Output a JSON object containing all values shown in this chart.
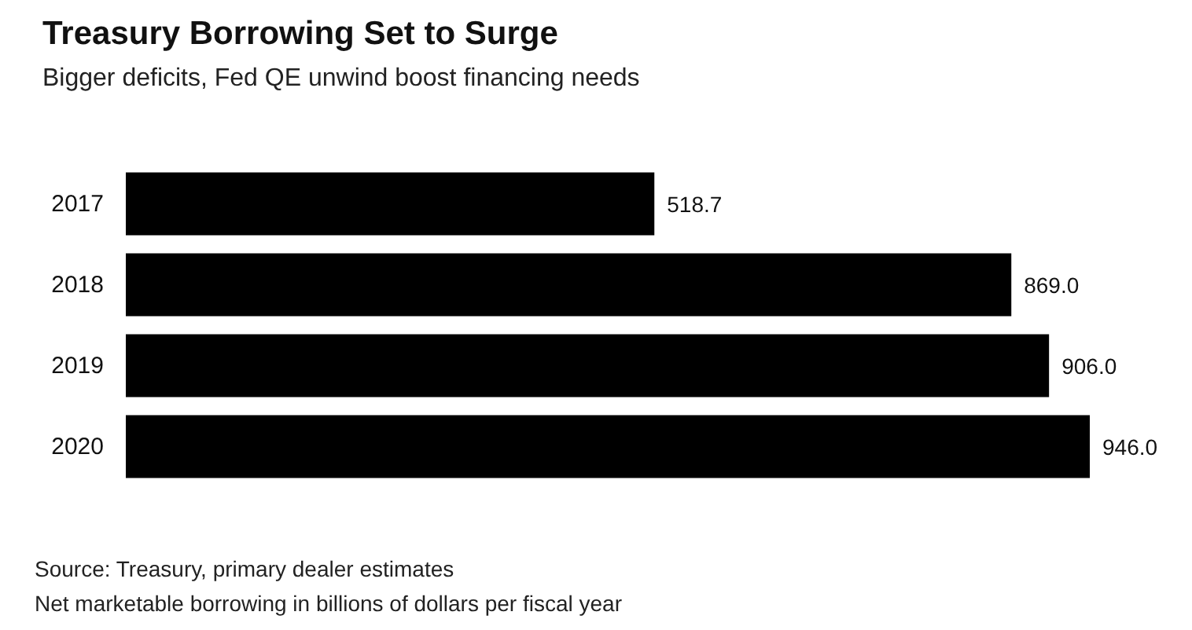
{
  "chart_data": {
    "type": "bar",
    "orientation": "horizontal",
    "title": "Treasury Borrowing Set to Surge",
    "subtitle": "Bigger deficits, Fed QE unwind boost financing needs",
    "categories": [
      "2017",
      "2018",
      "2019",
      "2020"
    ],
    "values": [
      518.7,
      869.0,
      906.0,
      946.0
    ],
    "color": "#000000",
    "value_labels": [
      "518.7",
      "869.0",
      "906.0",
      "946.0"
    ],
    "annotations": [
      "Source: Treasury, primary dealer estimates",
      "Net marketable borrowing in billions of dollars per fiscal year"
    ]
  }
}
